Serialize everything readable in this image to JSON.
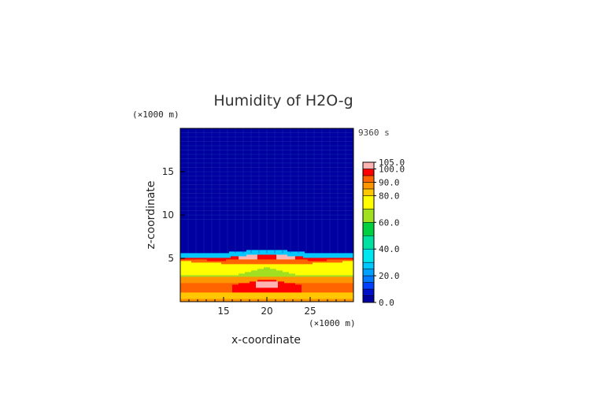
{
  "chart_data": {
    "type": "heatmap",
    "title": "Humidity of H2O-g",
    "time_label": "9360 s",
    "xlabel": "x-coordinate",
    "ylabel": "z-coordinate",
    "x_unit": "(×1000 m)",
    "y_unit": "(×1000 m)",
    "xlim": [
      10,
      30
    ],
    "ylim": [
      0,
      20
    ],
    "x_ticks": [
      15,
      20,
      25
    ],
    "y_ticks": [
      5,
      10,
      15
    ],
    "colorbar": {
      "labels": [
        "105.0",
        "100.0",
        "90.0",
        "80.0",
        "60.0",
        "40.0",
        "20.0",
        "0.0"
      ],
      "levels": [
        {
          "lo": 0,
          "hi": 5,
          "color": "#0000a0"
        },
        {
          "lo": 5,
          "hi": 10,
          "color": "#0010c8"
        },
        {
          "lo": 10,
          "hi": 15,
          "color": "#0040ff"
        },
        {
          "lo": 15,
          "hi": 20,
          "color": "#0078ff"
        },
        {
          "lo": 20,
          "hi": 25,
          "color": "#00a0ff"
        },
        {
          "lo": 25,
          "hi": 30,
          "color": "#00c8ff"
        },
        {
          "lo": 30,
          "hi": 40,
          "color": "#00e6f0"
        },
        {
          "lo": 40,
          "hi": 50,
          "color": "#00e0a0"
        },
        {
          "lo": 50,
          "hi": 60,
          "color": "#00d040"
        },
        {
          "lo": 60,
          "hi": 70,
          "color": "#a0e020"
        },
        {
          "lo": 70,
          "hi": 80,
          "color": "#ffff00"
        },
        {
          "lo": 80,
          "hi": 85,
          "color": "#ffc800"
        },
        {
          "lo": 85,
          "hi": 90,
          "color": "#ff9600"
        },
        {
          "lo": 90,
          "hi": 95,
          "color": "#ff6400"
        },
        {
          "lo": 95,
          "hi": 100,
          "color": "#ff0000"
        },
        {
          "lo": 100,
          "hi": 105,
          "color": "#ffb4b4"
        }
      ]
    },
    "field_description_bands": [
      {
        "z": [
          0.0,
          0.4
        ],
        "value": 85
      },
      {
        "z": [
          0.4,
          1.0
        ],
        "value": 80
      },
      {
        "z": [
          1.0,
          1.6
        ],
        "value": 92
      },
      {
        "z": [
          1.6,
          2.2
        ],
        "value": 97
      },
      {
        "z": [
          2.2,
          2.8
        ],
        "value": 85
      },
      {
        "z": [
          2.8,
          3.6
        ],
        "value": 65
      },
      {
        "z": [
          3.6,
          4.2
        ],
        "value": 72
      },
      {
        "z": [
          4.2,
          4.6
        ],
        "value": 92
      },
      {
        "z": [
          4.6,
          5.0
        ],
        "value": 97
      },
      {
        "z": [
          5.0,
          5.6
        ],
        "value": 25
      },
      {
        "z": [
          5.6,
          20.0
        ],
        "value": 3
      }
    ]
  }
}
